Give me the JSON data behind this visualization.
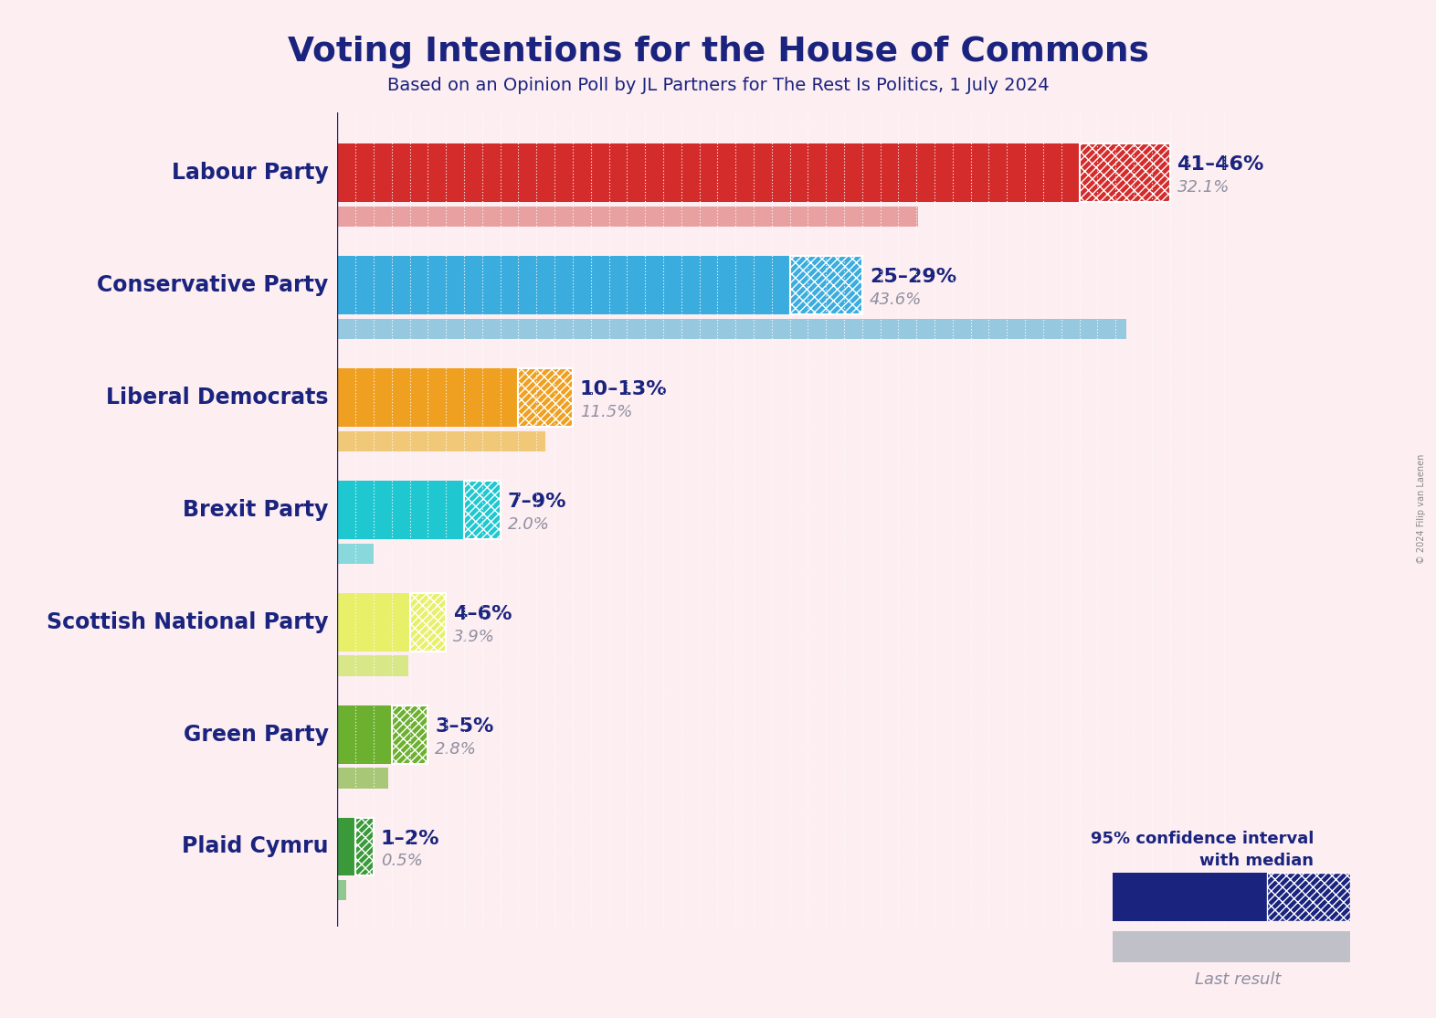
{
  "title": "Voting Intentions for the House of Commons",
  "subtitle": "Based on an Opinion Poll by JL Partners for The Rest Is Politics, 1 July 2024",
  "background_color": "#FDEEF2",
  "title_color": "#1a237e",
  "subtitle_color": "#1a237e",
  "parties": [
    "Labour Party",
    "Conservative Party",
    "Liberal Democrats",
    "Brexit Party",
    "Scottish National Party",
    "Green Party",
    "Plaid Cymru"
  ],
  "ci_low": [
    41,
    25,
    10,
    7,
    4,
    3,
    1
  ],
  "ci_high": [
    46,
    29,
    13,
    9,
    6,
    5,
    2
  ],
  "last_result": [
    32.1,
    43.6,
    11.5,
    2.0,
    3.9,
    2.8,
    0.5
  ],
  "ci_label": [
    "41–46%",
    "25–29%",
    "10–13%",
    "7–9%",
    "4–6%",
    "3–5%",
    "1–2%"
  ],
  "bar_colors": [
    "#D42B2B",
    "#3AACDE",
    "#F0A020",
    "#1FC8D0",
    "#E8F06A",
    "#6CB030",
    "#3A9A3A"
  ],
  "last_result_colors": [
    "#E8A0A0",
    "#96C8E0",
    "#F0C878",
    "#88D8DC",
    "#D8E888",
    "#A8C878",
    "#90C890"
  ],
  "label_color": "#1a237e",
  "last_result_text_color": "#9090A0",
  "legend_dark_color": "#1a237e",
  "copyright": "© 2024 Filip van Laenen",
  "xlim_data": 50,
  "ci_bar_height": 0.52,
  "last_bar_height": 0.18,
  "bar_gap": 0.04
}
